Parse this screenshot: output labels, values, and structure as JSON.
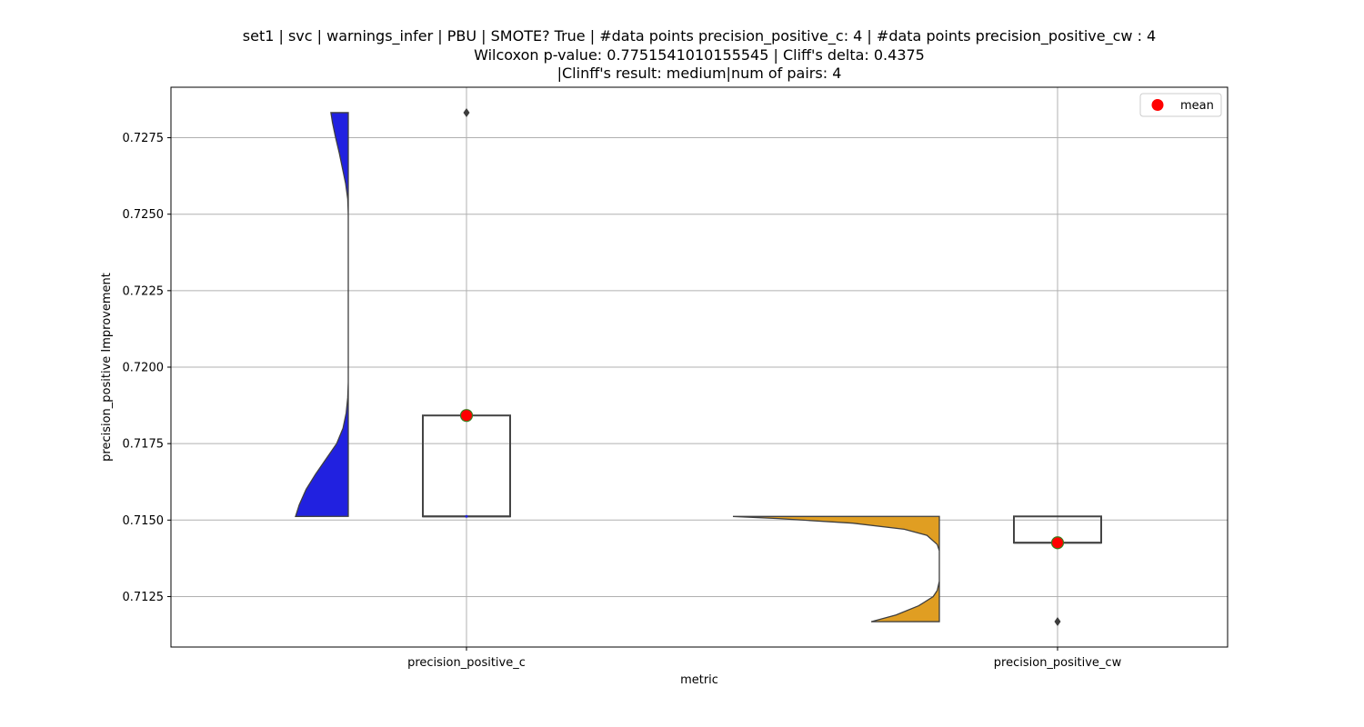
{
  "chart_data": {
    "type": "violin+box",
    "title_lines": [
      "set1 | svc | warnings_infer | PBU | SMOTE? True | #data points precision_positive_c: 4 | #data points precision_positive_cw : 4",
      "Wilcoxon p-value: 0.7751541010155545 | Cliff's delta: 0.4375",
      "|Clinff's result: medium|num of pairs: 4"
    ],
    "xlabel": "metric",
    "ylabel": "precision_positive Improvement",
    "categories": [
      "precision_positive_c",
      "precision_positive_cw"
    ],
    "ylim": [
      0.71085,
      0.72915
    ],
    "yticks": [
      0.7125,
      0.715,
      0.7175,
      0.72,
      0.7225,
      0.725,
      0.7275
    ],
    "ytick_labels": [
      "0.7125",
      "0.7150",
      "0.7175",
      "0.7200",
      "0.7225",
      "0.7250",
      "0.7275"
    ],
    "grid": true,
    "legend": {
      "position": "top-right",
      "entries": [
        {
          "label": "mean",
          "color": "#ff0000"
        }
      ]
    },
    "series": [
      {
        "name": "precision_positive_c",
        "violin_color": "#2121e0",
        "violin_side": "left",
        "violin_range": [
          0.71512,
          0.72832
        ],
        "violin_profile": [
          [
            0.71512,
            1.0
          ],
          [
            0.7155,
            0.93
          ],
          [
            0.716,
            0.8
          ],
          [
            0.7165,
            0.62
          ],
          [
            0.717,
            0.42
          ],
          [
            0.7175,
            0.22
          ],
          [
            0.718,
            0.1
          ],
          [
            0.7185,
            0.04
          ],
          [
            0.719,
            0.01
          ],
          [
            0.7195,
            0.0
          ],
          [
            0.72,
            0.0
          ],
          [
            0.725,
            0.0
          ],
          [
            0.7255,
            0.01
          ],
          [
            0.726,
            0.05
          ],
          [
            0.7265,
            0.11
          ],
          [
            0.727,
            0.17
          ],
          [
            0.7275,
            0.24
          ],
          [
            0.728,
            0.3
          ],
          [
            0.72832,
            0.33
          ]
        ],
        "box": {
          "q1": 0.71512,
          "median": 0.71512,
          "q3": 0.71842,
          "whisker_low": 0.71512,
          "whisker_high": 0.71842
        },
        "mean": 0.71842,
        "outliers": [
          0.72832
        ]
      },
      {
        "name": "precision_positive_cw",
        "violin_color": "#e09e22",
        "violin_side": "left",
        "violin_range": [
          0.71168,
          0.71512
        ],
        "violin_profile": [
          [
            0.71168,
            0.33
          ],
          [
            0.7119,
            0.21
          ],
          [
            0.7122,
            0.1
          ],
          [
            0.7125,
            0.03
          ],
          [
            0.7127,
            0.01
          ],
          [
            0.713,
            0.0
          ],
          [
            0.714,
            0.0
          ],
          [
            0.7142,
            0.01
          ],
          [
            0.7145,
            0.06
          ],
          [
            0.7147,
            0.17
          ],
          [
            0.7149,
            0.42
          ],
          [
            0.71505,
            0.78
          ],
          [
            0.71512,
            1.0
          ]
        ],
        "box": {
          "q1": 0.71426,
          "median": 0.71426,
          "q3": 0.71512,
          "whisker_low": 0.71426,
          "whisker_high": 0.71512
        },
        "mean": 0.71426,
        "outliers": [
          0.71168
        ]
      }
    ]
  }
}
